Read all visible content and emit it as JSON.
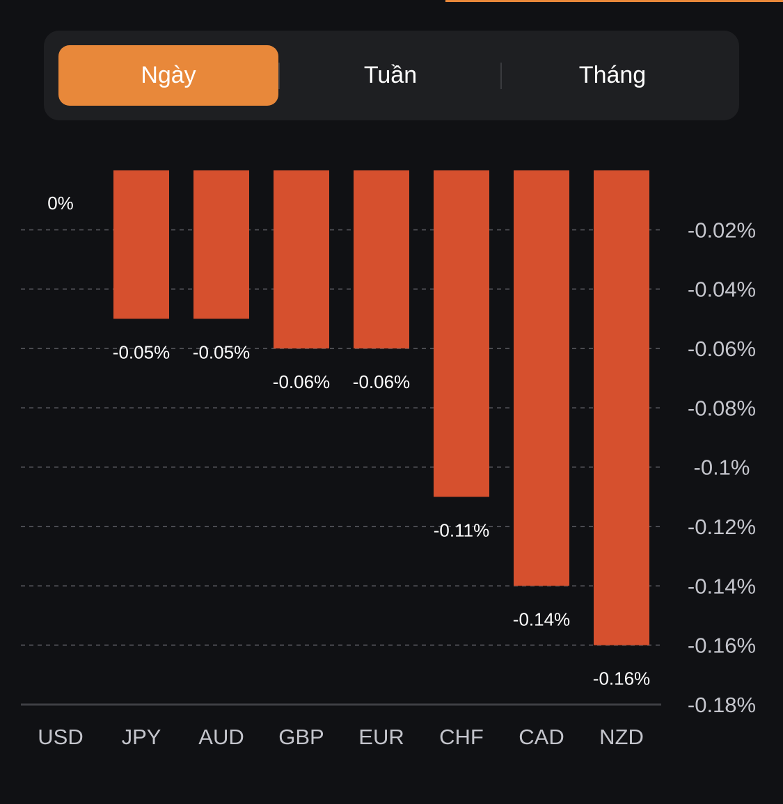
{
  "tabs": [
    {
      "label": "Ngày",
      "active": true
    },
    {
      "label": "Tuần",
      "active": false
    },
    {
      "label": "Tháng",
      "active": false
    }
  ],
  "colors": {
    "accent": "#E8883A",
    "bar": "#D6502E",
    "background": "#101114",
    "grid": "#4A4B50"
  },
  "chart_data": {
    "type": "bar",
    "title": "",
    "xlabel": "",
    "ylabel": "",
    "categories": [
      "USD",
      "JPY",
      "AUD",
      "GBP",
      "EUR",
      "CHF",
      "CAD",
      "NZD"
    ],
    "values": [
      0,
      -0.05,
      -0.05,
      -0.06,
      -0.06,
      -0.11,
      -0.14,
      -0.16
    ],
    "data_labels": [
      "0%",
      "-0.05%",
      "-0.05%",
      "-0.06%",
      "-0.06%",
      "-0.11%",
      "-0.14%",
      "-0.16%"
    ],
    "ylim": [
      -0.18,
      0
    ],
    "yticks": [
      -0.02,
      -0.04,
      -0.06,
      -0.08,
      -0.1,
      -0.12,
      -0.14,
      -0.16,
      -0.18
    ],
    "ytick_labels": [
      "-0.02%",
      "-0.04%",
      "-0.06%",
      "-0.08%",
      "-0.1%",
      "-0.12%",
      "-0.14%",
      "-0.16%",
      "-0.18%"
    ],
    "y_axis_position": "right",
    "grid": true,
    "legend": "none"
  }
}
